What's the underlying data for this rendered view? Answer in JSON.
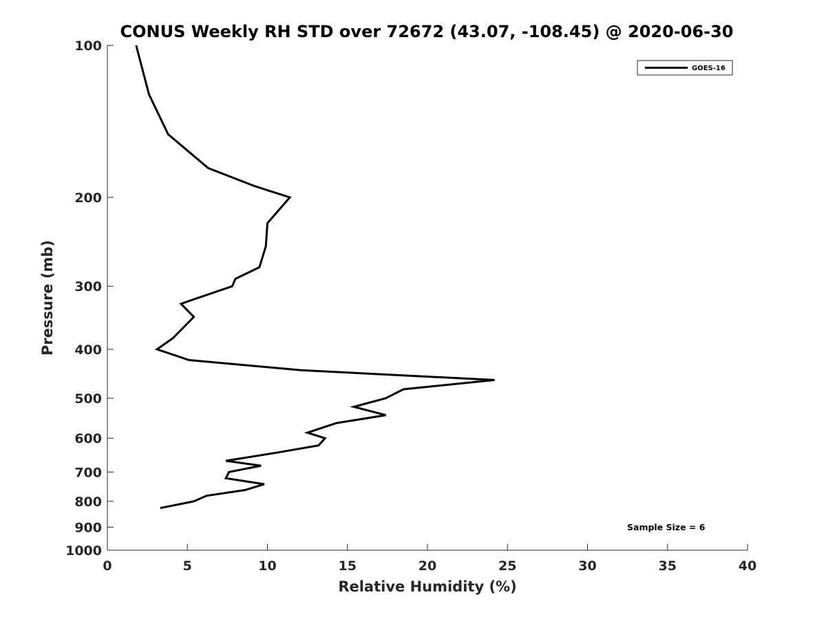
{
  "chart_data": {
    "type": "line",
    "title": "CONUS Weekly RH STD over 72672 (43.07, -108.45) @ 2020-06-30",
    "xlabel": "Relative Humidity (%)",
    "ylabel": "Pressure (mb)",
    "xlim": [
      0,
      40
    ],
    "ylim": [
      100,
      1000
    ],
    "yscale": "log",
    "y_inverted": true,
    "x_ticks": [
      0,
      5,
      10,
      15,
      20,
      25,
      30,
      35,
      40
    ],
    "y_ticks": [
      100,
      200,
      300,
      400,
      500,
      600,
      700,
      800,
      900,
      1000
    ],
    "grid": false,
    "legend_position": "top-right",
    "annotation": "Sample Size = 6",
    "series": [
      {
        "name": "GOES-16",
        "color": "#000000",
        "points": [
          {
            "x": 1.8,
            "y": 100
          },
          {
            "x": 2.6,
            "y": 125
          },
          {
            "x": 3.8,
            "y": 150
          },
          {
            "x": 6.3,
            "y": 175
          },
          {
            "x": 9.2,
            "y": 190
          },
          {
            "x": 11.4,
            "y": 200
          },
          {
            "x": 10.0,
            "y": 225
          },
          {
            "x": 9.9,
            "y": 250
          },
          {
            "x": 9.5,
            "y": 275
          },
          {
            "x": 8.0,
            "y": 290
          },
          {
            "x": 7.8,
            "y": 300
          },
          {
            "x": 5.2,
            "y": 320
          },
          {
            "x": 4.6,
            "y": 325
          },
          {
            "x": 5.4,
            "y": 345
          },
          {
            "x": 4.1,
            "y": 380
          },
          {
            "x": 3.1,
            "y": 400
          },
          {
            "x": 5.1,
            "y": 420
          },
          {
            "x": 12.1,
            "y": 440
          },
          {
            "x": 24.2,
            "y": 460
          },
          {
            "x": 18.5,
            "y": 480
          },
          {
            "x": 17.4,
            "y": 500
          },
          {
            "x": 15.4,
            "y": 520
          },
          {
            "x": 17.4,
            "y": 540
          },
          {
            "x": 14.3,
            "y": 560
          },
          {
            "x": 12.5,
            "y": 585
          },
          {
            "x": 13.6,
            "y": 600
          },
          {
            "x": 13.2,
            "y": 620
          },
          {
            "x": 10.7,
            "y": 640
          },
          {
            "x": 7.4,
            "y": 665
          },
          {
            "x": 9.6,
            "y": 680
          },
          {
            "x": 7.6,
            "y": 700
          },
          {
            "x": 7.4,
            "y": 720
          },
          {
            "x": 9.8,
            "y": 740
          },
          {
            "x": 8.6,
            "y": 760
          },
          {
            "x": 6.2,
            "y": 780
          },
          {
            "x": 5.4,
            "y": 800
          },
          {
            "x": 3.3,
            "y": 825
          }
        ]
      }
    ]
  }
}
